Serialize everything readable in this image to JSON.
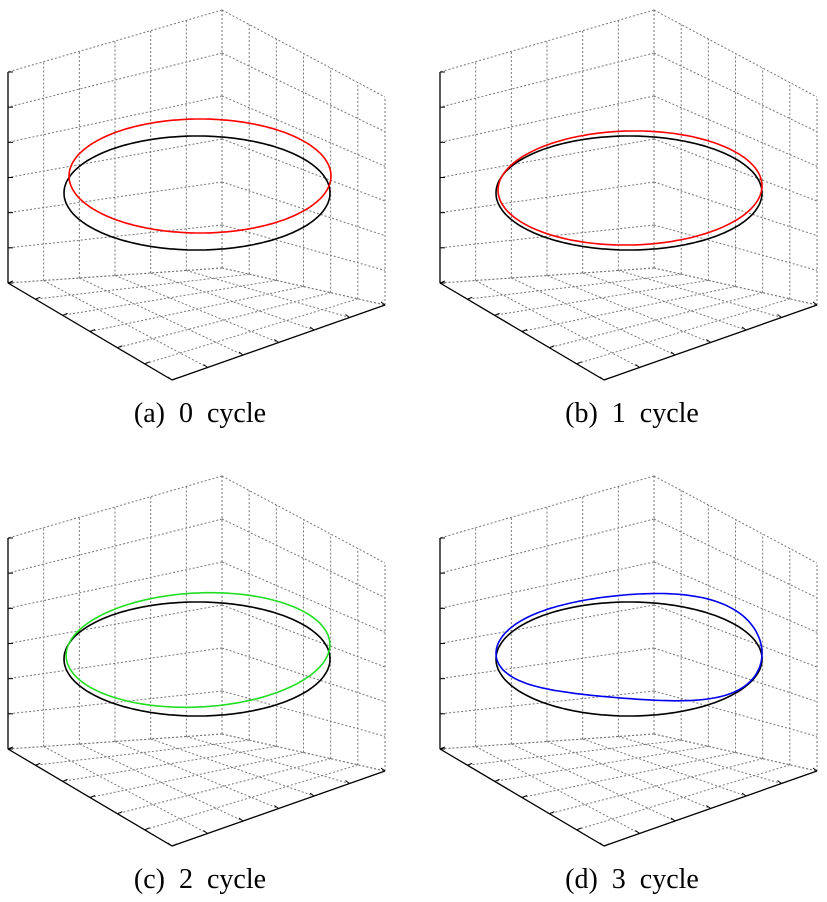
{
  "panels": [
    {
      "caption": "(a)  0  cycle"
    },
    {
      "caption": "(b)  1  cycle"
    },
    {
      "caption": "(c)  2  cycle"
    },
    {
      "caption": "(d)  3  cycle"
    }
  ]
}
